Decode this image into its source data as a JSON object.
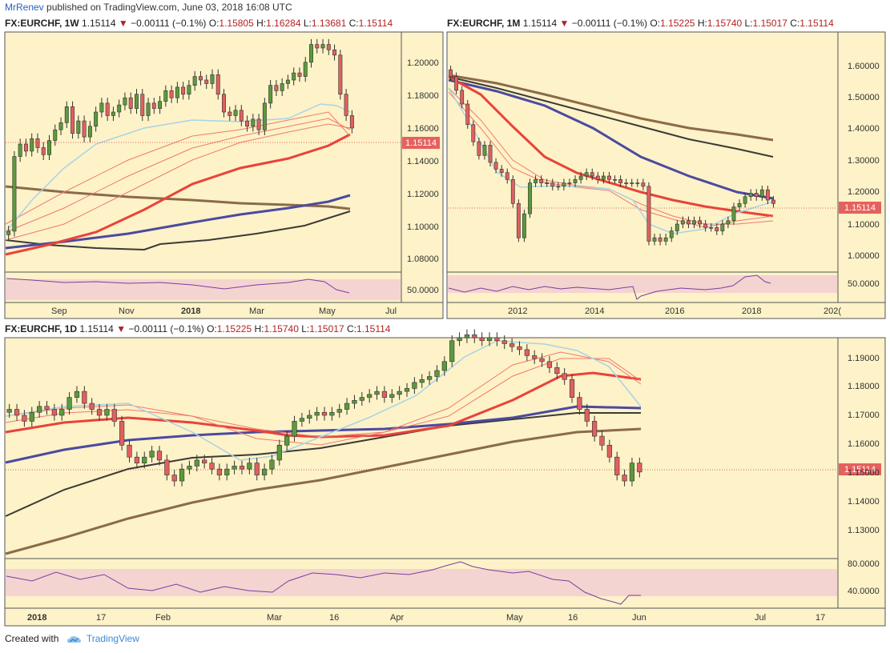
{
  "header": {
    "author": "MrRenev",
    "text": "published on TradingView.com, June 03, 2018 16:08 UTC"
  },
  "panels": [
    {
      "symbol": "FX:EURCHF, 1W",
      "last": "1.15114",
      "change": "−0.00111 (−0.1%)",
      "o": "1.15805",
      "h": "1.16284",
      "l": "1.13681",
      "c": "1.15114",
      "price_label": "1.15114",
      "y_ticks": [
        "1.20000",
        "1.18000",
        "1.16000",
        "1.14000",
        "1.12000",
        "1.10000",
        "1.08000"
      ],
      "rsi_tick": "50.0000",
      "x_ticks": [
        "Sep",
        "Nov",
        "2018",
        "Mar",
        "May",
        "Jul"
      ]
    },
    {
      "symbol": "FX:EURCHF, 1M",
      "last": "1.15114",
      "change": "−0.00111 (−0.1%)",
      "o": "1.15225",
      "h": "1.15740",
      "l": "1.15017",
      "c": "1.15114",
      "price_label": "1.15114",
      "y_ticks": [
        "1.60000",
        "1.50000",
        "1.40000",
        "1.30000",
        "1.20000",
        "1.10000",
        "1.00000"
      ],
      "rsi_tick": "50.0000",
      "x_ticks": [
        "2012",
        "2014",
        "2016",
        "2018",
        "202("
      ]
    },
    {
      "symbol": "FX:EURCHF, 1D",
      "last": "1.15114",
      "change": "−0.00111 (−0.1%)",
      "o": "1.15225",
      "h": "1.15740",
      "l": "1.15017",
      "c": "1.15114",
      "price_label": "1.15114",
      "y_ticks": [
        "1.19000",
        "1.18000",
        "1.17000",
        "1.16000",
        "1.15000",
        "1.14000",
        "1.13000"
      ],
      "rsi_ticks": [
        "80.0000",
        "40.0000"
      ],
      "x_ticks": [
        "2018",
        "17",
        "Feb",
        "Mar",
        "16",
        "Apr",
        "May",
        "16",
        "Jun",
        "Jul",
        "17"
      ]
    }
  ],
  "footer": {
    "created_with": "Created with",
    "brand": "TradingView"
  },
  "colors": {
    "background": "#fdf2c8",
    "up_candle": "#5a9a3c",
    "down_candle": "#e06060",
    "ma_red": "#e8433a",
    "ma_blue": "#4b4aa0",
    "ma_brown": "#8b6a4a",
    "ma_dark": "#3c3a35",
    "ma_lightblue": "#a8d4e6",
    "rsi_line": "#7a3ea0",
    "rsi_band": "#f4d4d0"
  },
  "chart_data": [
    {
      "type": "candlestick",
      "title": "FX:EURCHF, 1W",
      "ylim": [
        1.07,
        1.205
      ],
      "y_ticks": [
        1.08,
        1.1,
        1.12,
        1.14,
        1.16,
        1.18,
        1.2
      ],
      "last_price": 1.15114,
      "series": [
        {
          "name": "close",
          "values": [
            1.093,
            1.135,
            1.142,
            1.138,
            1.145,
            1.14,
            1.136,
            1.144,
            1.15,
            1.154,
            1.163,
            1.148,
            1.155,
            1.146,
            1.152,
            1.16,
            1.165,
            1.158,
            1.16,
            1.164,
            1.168,
            1.162,
            1.17,
            1.158,
            1.165,
            1.162,
            1.166,
            1.172,
            1.168,
            1.174,
            1.17,
            1.175,
            1.18,
            1.178,
            1.176,
            1.181,
            1.17,
            1.16,
            1.158,
            1.161,
            1.155,
            1.152,
            1.156,
            1.15,
            1.165,
            1.175,
            1.172,
            1.176,
            1.178,
            1.182,
            1.18,
            1.188,
            1.198,
            1.196,
            1.198,
            1.195,
            1.192,
            1.17,
            1.158,
            1.151
          ]
        }
      ]
    },
    {
      "type": "candlestick",
      "title": "FX:EURCHF, 1M",
      "ylim": [
        0.95,
        1.65
      ],
      "y_ticks": [
        1.0,
        1.1,
        1.2,
        1.3,
        1.4,
        1.5,
        1.6
      ],
      "x_tick_labels": [
        "2012",
        "2014",
        "2016",
        "2018"
      ],
      "last_price": 1.15114,
      "series": [
        {
          "name": "close",
          "values": [
            1.52,
            1.48,
            1.44,
            1.38,
            1.33,
            1.29,
            1.32,
            1.27,
            1.25,
            1.24,
            1.22,
            1.15,
            1.05,
            1.12,
            1.21,
            1.22,
            1.21,
            1.21,
            1.2,
            1.2,
            1.21,
            1.21,
            1.22,
            1.23,
            1.24,
            1.23,
            1.22,
            1.23,
            1.22,
            1.22,
            1.21,
            1.21,
            1.21,
            1.21,
            1.2,
            1.04,
            1.05,
            1.04,
            1.05,
            1.07,
            1.09,
            1.1,
            1.09,
            1.1,
            1.09,
            1.08,
            1.08,
            1.07,
            1.09,
            1.1,
            1.14,
            1.15,
            1.17,
            1.18,
            1.17,
            1.19,
            1.16,
            1.15
          ]
        }
      ]
    },
    {
      "type": "candlestick",
      "title": "FX:EURCHF, 1D",
      "ylim": [
        1.122,
        1.196
      ],
      "y_ticks": [
        1.13,
        1.14,
        1.15,
        1.16,
        1.17,
        1.18,
        1.19
      ],
      "x_tick_labels": [
        "2018",
        "17",
        "Feb",
        "Mar",
        "16",
        "Apr",
        "May",
        "16",
        "Jun",
        "Jul",
        "17"
      ],
      "last_price": 1.15114,
      "series": [
        {
          "name": "close",
          "values": [
            1.172,
            1.17,
            1.168,
            1.171,
            1.173,
            1.172,
            1.17,
            1.172,
            1.176,
            1.178,
            1.174,
            1.172,
            1.17,
            1.172,
            1.168,
            1.16,
            1.156,
            1.154,
            1.156,
            1.158,
            1.155,
            1.15,
            1.148,
            1.152,
            1.153,
            1.155,
            1.154,
            1.152,
            1.15,
            1.152,
            1.153,
            1.152,
            1.154,
            1.15,
            1.152,
            1.155,
            1.16,
            1.163,
            1.168,
            1.169,
            1.17,
            1.171,
            1.17,
            1.171,
            1.172,
            1.174,
            1.175,
            1.176,
            1.177,
            1.178,
            1.176,
            1.177,
            1.178,
            1.179,
            1.181,
            1.182,
            1.183,
            1.185,
            1.188,
            1.195,
            1.196,
            1.197,
            1.196,
            1.195,
            1.196,
            1.195,
            1.194,
            1.193,
            1.192,
            1.19,
            1.189,
            1.188,
            1.186,
            1.184,
            1.182,
            1.176,
            1.172,
            1.168,
            1.163,
            1.16,
            1.156,
            1.15,
            1.148,
            1.154,
            1.151
          ]
        }
      ]
    }
  ]
}
